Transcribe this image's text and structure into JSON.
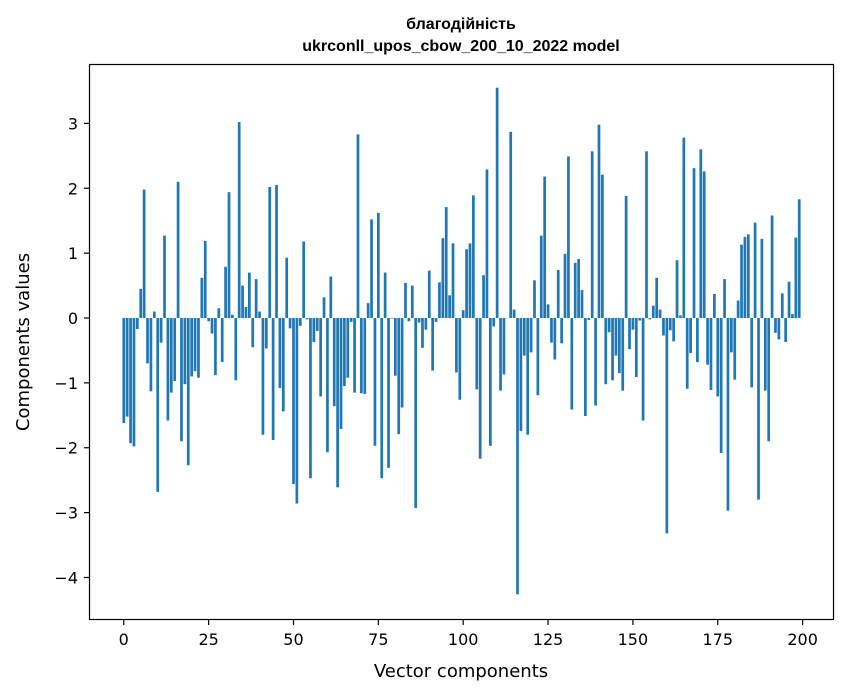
{
  "chart_data": {
    "type": "bar",
    "title_line1": "благодійність",
    "title_line2": "ukrconll_upos_cbow_200_10_2022 model",
    "xlabel": "Vector components",
    "ylabel": "Components values",
    "xlim": [
      -9.95,
      208.95
    ],
    "ylim": [
      -4.64,
      3.9
    ],
    "xticks": [
      0,
      25,
      50,
      75,
      100,
      125,
      150,
      175,
      200
    ],
    "yticks": [
      -4,
      -3,
      -2,
      -1,
      0,
      1,
      2,
      3
    ],
    "color": "#1f77b4",
    "grid": false,
    "values": [
      -1.62,
      -1.52,
      -1.93,
      -1.98,
      -0.17,
      0.45,
      1.98,
      -0.7,
      -1.13,
      0.1,
      -2.68,
      -0.38,
      1.27,
      -1.58,
      -1.15,
      -0.97,
      2.1,
      -1.9,
      -1.02,
      -2.27,
      -0.9,
      -0.82,
      -0.92,
      0.62,
      1.19,
      -0.05,
      -0.24,
      -0.88,
      0.15,
      -0.68,
      0.79,
      1.94,
      0.05,
      -0.96,
      3.02,
      0.5,
      0.17,
      0.7,
      -0.45,
      0.6,
      0.1,
      -1.8,
      -0.47,
      2.02,
      -1.88,
      2.05,
      -1.08,
      -1.44,
      0.93,
      -0.16,
      -2.56,
      -2.86,
      -0.12,
      1.18,
      -0.02,
      -2.47,
      -0.37,
      -0.2,
      -1.21,
      0.32,
      -2.07,
      0.64,
      -1.36,
      -2.61,
      -1.71,
      -1.05,
      -0.92,
      -0.06,
      -1.15,
      2.83,
      -1.16,
      -1.17,
      0.23,
      1.52,
      -1.97,
      1.62,
      -2.47,
      0.7,
      -2.31,
      -0.01,
      -0.89,
      -1.79,
      -1.38,
      0.54,
      -0.05,
      0.5,
      -2.93,
      -0.07,
      -0.46,
      -0.18,
      0.73,
      -0.81,
      -0.06,
      0.55,
      1.23,
      1.71,
      0.35,
      1.15,
      -0.84,
      -1.26,
      0.12,
      1.06,
      1.15,
      1.89,
      -1.1,
      -2.17,
      0.66,
      2.29,
      -1.97,
      -0.13,
      3.55,
      -1.12,
      -0.87,
      0.0,
      2.87,
      0.13,
      -4.26,
      -1.74,
      -0.58,
      -1.8,
      -0.53,
      0.58,
      -1.19,
      1.27,
      2.18,
      0.21,
      -0.38,
      -0.64,
      0.74,
      -0.39,
      0.99,
      2.49,
      -1.41,
      0.85,
      0.91,
      0.43,
      -1.51,
      -0.03,
      2.57,
      -1.35,
      2.98,
      2.21,
      -1.02,
      -0.22,
      -0.96,
      -0.58,
      -0.85,
      -1.12,
      1.88,
      -0.48,
      -0.18,
      -0.91,
      -0.04,
      -1.58,
      2.57,
      -0.02,
      0.19,
      0.62,
      0.13,
      -0.27,
      -3.32,
      -0.19,
      -0.36,
      0.89,
      0.04,
      2.78,
      -1.09,
      -0.54,
      2.31,
      -0.68,
      2.6,
      2.26,
      -0.72,
      -1.11,
      0.37,
      -1.21,
      -2.08,
      0.6,
      -2.97,
      -0.53,
      -0.95,
      0.27,
      1.13,
      1.25,
      1.29,
      -1.07,
      1.47,
      -2.8,
      1.22,
      -1.12,
      -1.9,
      1.58,
      -0.23,
      -0.33,
      0.38,
      -0.37,
      0.56,
      0.06,
      1.24,
      1.83
    ]
  }
}
